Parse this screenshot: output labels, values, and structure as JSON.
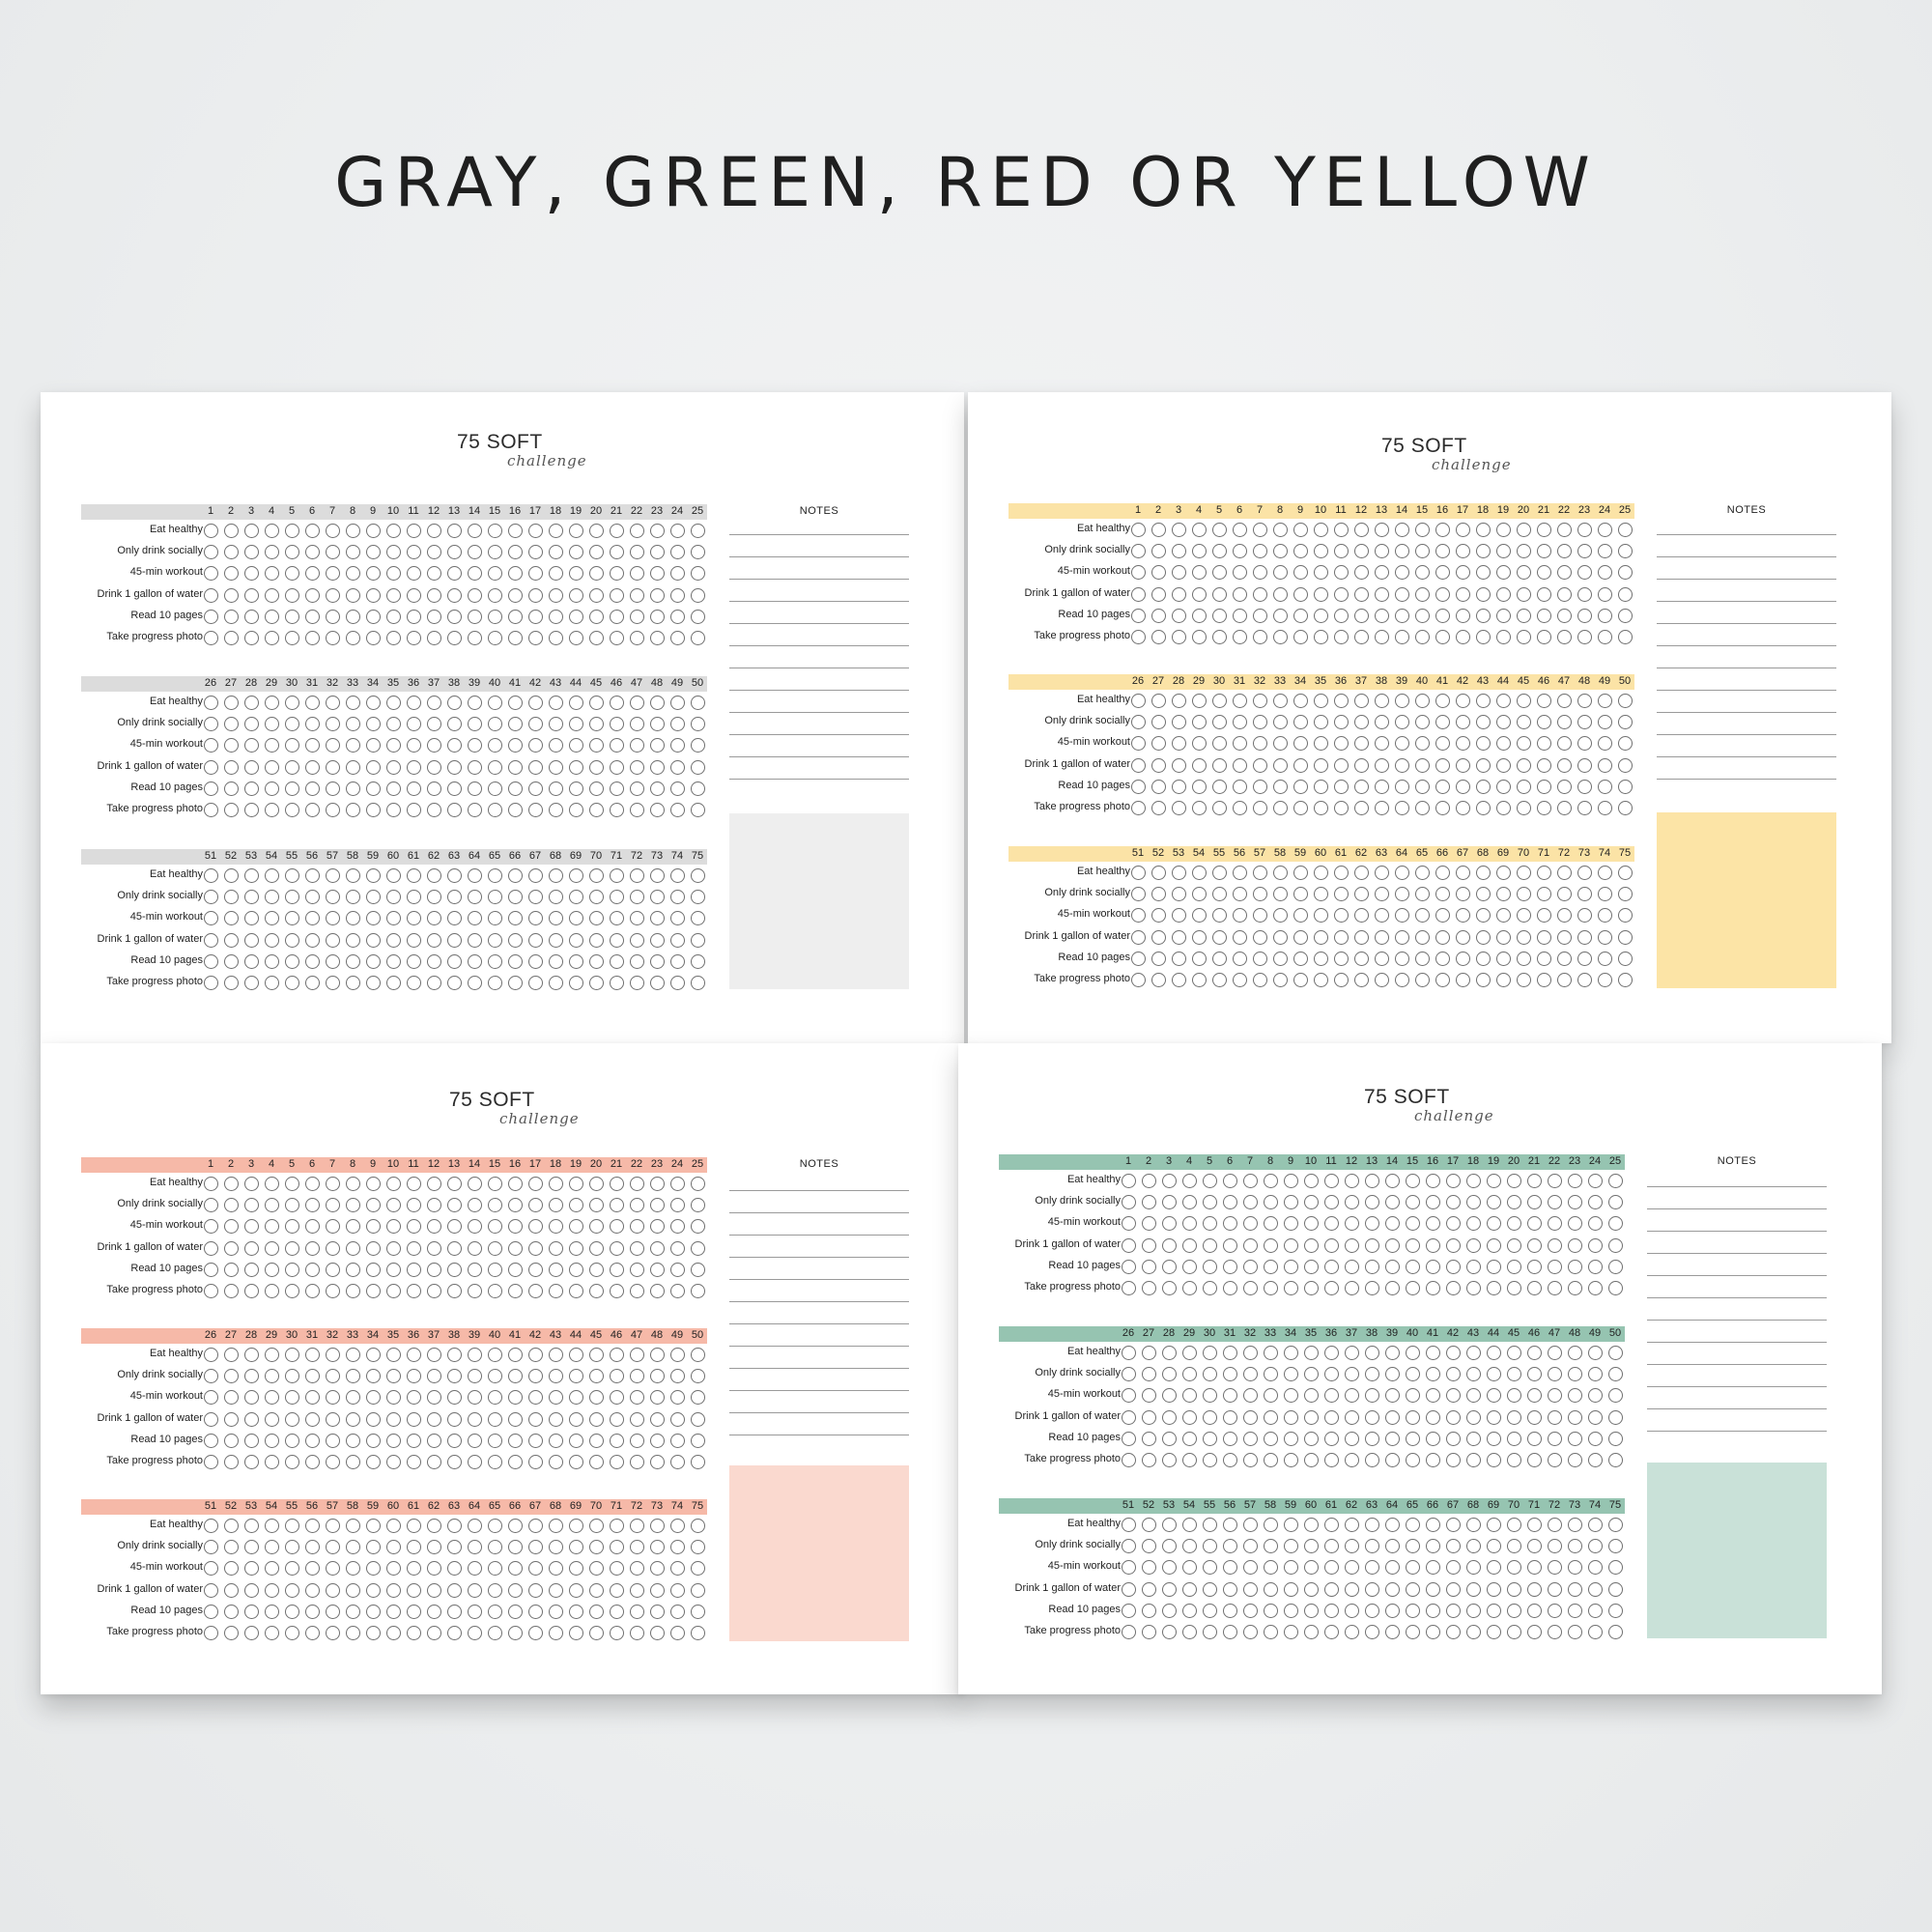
{
  "headline": "GRAY, GREEN, RED OR YELLOW",
  "tracker": {
    "title_main": "75 SOFT",
    "title_script": "challenge",
    "notes_label": "NOTES",
    "habits": [
      "Eat healthy",
      "Only drink socially",
      "45-min workout",
      "Drink 1 gallon of water",
      "Read 10 pages",
      "Take progress photo"
    ],
    "blocks": [
      {
        "days": [
          "1",
          "2",
          "3",
          "4",
          "5",
          "6",
          "7",
          "8",
          "9",
          "10",
          "11",
          "12",
          "13",
          "14",
          "15",
          "16",
          "17",
          "18",
          "19",
          "20",
          "21",
          "22",
          "23",
          "24",
          "25"
        ]
      },
      {
        "days": [
          "26",
          "27",
          "28",
          "29",
          "30",
          "31",
          "32",
          "33",
          "34",
          "35",
          "36",
          "37",
          "38",
          "39",
          "40",
          "41",
          "42",
          "43",
          "44",
          "45",
          "46",
          "47",
          "48",
          "49",
          "50"
        ]
      },
      {
        "days": [
          "51",
          "52",
          "53",
          "54",
          "55",
          "56",
          "57",
          "58",
          "59",
          "60",
          "61",
          "62",
          "63",
          "64",
          "65",
          "66",
          "67",
          "68",
          "69",
          "70",
          "71",
          "72",
          "73",
          "74",
          "75"
        ]
      }
    ]
  },
  "sheets": [
    {
      "name": "gray",
      "accent": "#dcdcdc",
      "swatch": "#eeeeee"
    },
    {
      "name": "yellow",
      "accent": "#fbe3a6",
      "swatch": "#fce4a6"
    },
    {
      "name": "red",
      "accent": "#f6b9a8",
      "swatch": "#fad9cf"
    },
    {
      "name": "green",
      "accent": "#96c4b1",
      "swatch": "#c9e1d8"
    }
  ]
}
